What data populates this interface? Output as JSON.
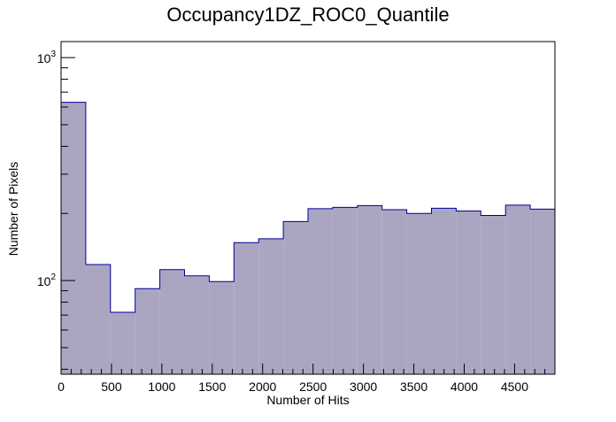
{
  "chart_data": {
    "type": "bar",
    "title": "Occupancy1DZ_ROC0_Quantile",
    "xlabel": "Number of Hits",
    "ylabel": "Number of Pixels",
    "y_scale": "log",
    "xlim": [
      0,
      4900
    ],
    "ylim": [
      38,
      1180
    ],
    "bin_width": 245,
    "bin_edges": [
      0,
      245,
      490,
      735,
      980,
      1225,
      1470,
      1715,
      1960,
      2205,
      2450,
      2695,
      2940,
      3185,
      3430,
      3675,
      3920,
      4165,
      4410,
      4655,
      4900
    ],
    "values": [
      630,
      118,
      72,
      92,
      112,
      105,
      99,
      148,
      154,
      184,
      210,
      213,
      217,
      208,
      200,
      211,
      205,
      196,
      218,
      209
    ],
    "x_ticks": [
      "0",
      "500",
      "1000",
      "1500",
      "2000",
      "2500",
      "3000",
      "3500",
      "4000",
      "4500"
    ],
    "x_tick_values": [
      0,
      500,
      1000,
      1500,
      2000,
      2500,
      3000,
      3500,
      4000,
      4500
    ],
    "y_major_ticks": [
      {
        "value": 100,
        "base": "10",
        "exp": "2"
      },
      {
        "value": 1000,
        "base": "10",
        "exp": "3"
      }
    ],
    "fill_color": "#aaa6c2",
    "line_color": "#000099",
    "grid": false,
    "legend": "none"
  }
}
